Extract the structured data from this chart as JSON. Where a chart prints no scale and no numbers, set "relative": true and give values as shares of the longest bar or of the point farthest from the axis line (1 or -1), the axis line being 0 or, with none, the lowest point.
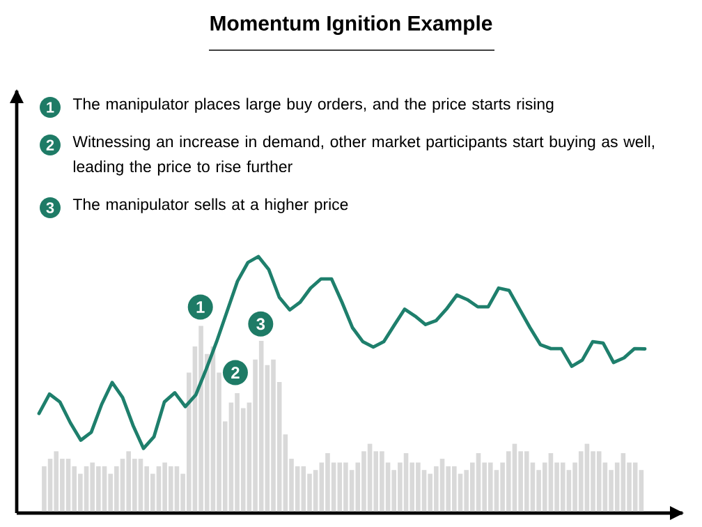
{
  "chart_data": [
    {
      "type": "bar",
      "relative": true,
      "title": "Momentum Ignition Example",
      "categories": [
        null,
        null,
        null,
        null,
        null,
        null,
        null,
        null,
        null,
        null,
        null,
        null,
        null,
        null,
        null,
        null,
        null,
        null,
        null,
        null,
        null,
        null,
        null,
        null,
        null,
        null,
        null,
        null,
        null,
        null,
        null,
        null,
        null,
        null,
        null,
        null,
        null,
        null,
        null,
        null,
        null,
        null,
        null,
        null,
        null,
        null,
        null,
        null,
        null,
        null,
        null,
        null,
        null,
        null,
        null,
        null,
        null,
        null,
        null,
        null,
        null,
        null,
        null,
        null,
        null,
        null,
        null,
        null,
        null,
        null,
        null,
        null,
        null,
        null,
        null,
        null,
        null,
        null,
        null,
        null,
        null,
        null,
        null,
        null,
        null,
        null,
        null,
        null,
        null,
        null,
        null,
        null,
        null,
        null,
        null,
        null,
        null,
        null,
        null,
        null
      ],
      "series": [
        {
          "color": "#d9d9d9",
          "values": [
            0.25,
            0.29,
            0.33,
            0.29,
            0.29,
            0.25,
            0.21,
            0.25,
            0.27,
            0.25,
            0.25,
            0.21,
            0.25,
            0.29,
            0.33,
            0.29,
            0.29,
            0.25,
            0.21,
            0.25,
            0.27,
            0.25,
            0.25,
            0.21,
            0.75,
            0.89,
            1.0,
            0.85,
            0.89,
            0.75,
            0.49,
            0.59,
            0.64,
            0.56,
            0.59,
            0.82,
            0.92,
            0.79,
            0.82,
            0.7,
            0.42,
            0.29,
            0.25,
            0.25,
            0.21,
            0.23,
            0.27,
            0.32,
            0.27,
            0.27,
            0.27,
            0.23,
            0.27,
            0.33,
            0.37,
            0.33,
            0.33,
            0.27,
            0.23,
            0.27,
            0.32,
            0.27,
            0.27,
            0.23,
            0.21,
            0.25,
            0.29,
            0.25,
            0.25,
            0.21,
            0.23,
            0.27,
            0.32,
            0.27,
            0.27,
            0.23,
            0.27,
            0.33,
            0.37,
            0.33,
            0.33,
            0.27,
            0.23,
            0.27,
            0.32,
            0.27,
            0.27,
            0.23,
            0.27,
            0.33,
            0.37,
            0.33,
            0.33,
            0.27,
            0.23,
            0.27,
            0.32,
            0.27,
            0.27,
            0.23
          ]
        }
      ],
      "annotations": [
        "1",
        "The manipulator places large buy orders, and the price starts rising",
        "2",
        "Witnessing an increase in demand, other market participants start buying as well, leading the price to rise further",
        "3",
        "The manipulator sells at a higher price",
        "1",
        "2",
        "3"
      ]
    },
    {
      "type": "line",
      "relative": true,
      "categories": [
        null,
        null,
        null,
        null,
        null,
        null,
        null,
        null,
        null,
        null,
        null,
        null,
        null,
        null,
        null,
        null,
        null,
        null,
        null,
        null,
        null,
        null,
        null,
        null,
        null,
        null,
        null,
        null,
        null,
        null,
        null,
        null,
        null,
        null,
        null,
        null,
        null,
        null,
        null,
        null,
        null,
        null,
        null,
        null,
        null,
        null,
        null,
        null,
        null,
        null,
        null,
        null,
        null,
        null,
        null,
        null,
        null,
        null,
        null
      ],
      "series": [
        {
          "color": "#1e7f6c",
          "values": [
            0.388,
            0.464,
            0.433,
            0.352,
            0.284,
            0.315,
            0.424,
            0.509,
            0.451,
            0.342,
            0.252,
            0.297,
            0.433,
            0.469,
            0.415,
            0.46,
            0.56,
            0.668,
            0.786,
            0.904,
            0.977,
            1.0,
            0.949,
            0.841,
            0.792,
            0.822,
            0.877,
            0.913,
            0.913,
            0.822,
            0.723,
            0.668,
            0.647,
            0.668,
            0.732,
            0.795,
            0.768,
            0.735,
            0.75,
            0.795,
            0.85,
            0.832,
            0.804,
            0.804,
            0.877,
            0.868,
            0.795,
            0.723,
            0.656,
            0.641,
            0.641,
            0.572,
            0.596,
            0.668,
            0.663,
            0.587,
            0.605,
            0.641,
            0.64
          ]
        }
      ]
    }
  ]
}
